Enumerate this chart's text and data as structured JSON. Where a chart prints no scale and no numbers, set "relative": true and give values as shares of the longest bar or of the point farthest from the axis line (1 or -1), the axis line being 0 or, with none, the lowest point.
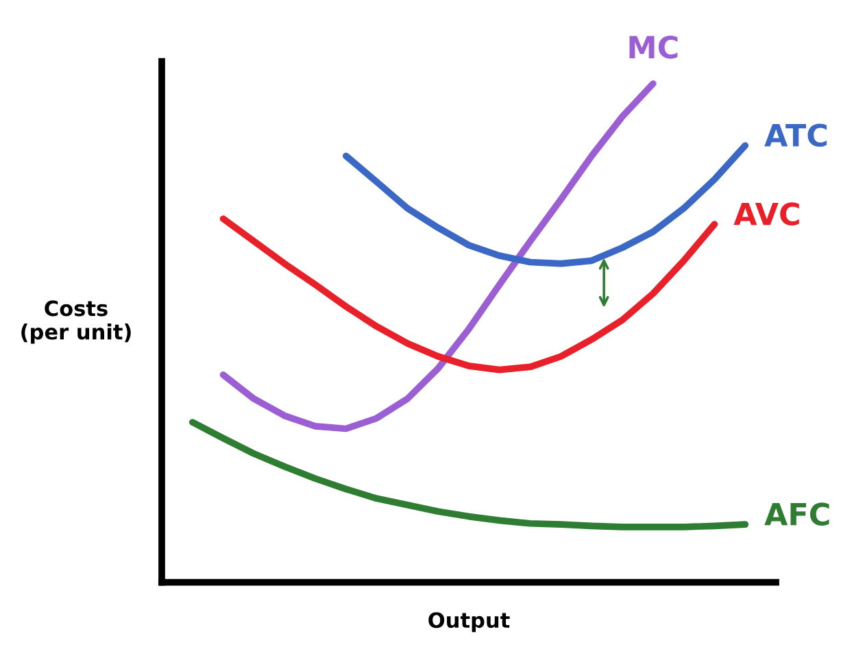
{
  "chart_data": {
    "type": "line",
    "relative": true,
    "xlabel": "Output",
    "ylabel": "Costs\n(per unit)",
    "tick_labels": false,
    "marker": "none",
    "line_style": "solid",
    "categories": [
      null,
      null,
      null,
      null,
      null,
      null,
      null,
      null,
      null,
      null,
      null,
      null,
      null,
      null,
      null,
      null,
      null,
      null,
      null,
      null,
      null
    ],
    "series": [
      {
        "name": "MC",
        "color": "#9b5fd3",
        "values": [
          null,
          null,
          0.416,
          0.368,
          0.334,
          0.313,
          0.308,
          0.329,
          0.368,
          0.429,
          0.508,
          0.597,
          0.684,
          0.768,
          0.855,
          0.934,
          1,
          null,
          null,
          null,
          null
        ]
      },
      {
        "name": "ATC",
        "color": "#3a68c4",
        "values": [
          null,
          null,
          null,
          null,
          null,
          null,
          0.855,
          0.803,
          0.75,
          0.711,
          0.676,
          0.655,
          0.642,
          0.639,
          0.645,
          0.671,
          0.703,
          0.75,
          0.808,
          0.876,
          null
        ]
      },
      {
        "name": "AVC",
        "color": "#e8202a",
        "values": [
          null,
          null,
          0.729,
          0.684,
          0.639,
          0.597,
          0.553,
          0.513,
          0.479,
          0.453,
          0.434,
          0.426,
          0.432,
          0.453,
          0.487,
          0.526,
          0.579,
          0.645,
          0.718,
          null,
          null
        ]
      },
      {
        "name": "AFC",
        "color": "#2e7d32",
        "values": [
          null,
          0.321,
          0.289,
          0.258,
          0.232,
          0.208,
          0.187,
          0.168,
          0.155,
          0.142,
          0.132,
          0.124,
          0.118,
          0.116,
          0.113,
          0.111,
          0.111,
          0.111,
          0.113,
          0.116,
          null
        ]
      }
    ]
  }
}
